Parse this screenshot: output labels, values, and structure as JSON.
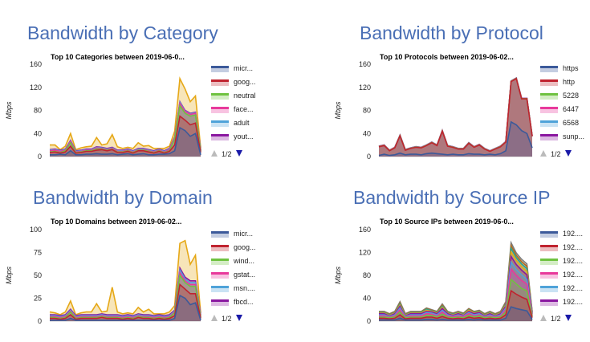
{
  "palette": [
    "#3c5a9a",
    "#c0232f",
    "#6fc240",
    "#e8399b",
    "#4fa3d9",
    "#8a17a0",
    "#e6a817",
    "#2aa58e",
    "#b46a1e",
    "#7d7d7d"
  ],
  "axis_color": "#cccccc",
  "pager_up_color": "#bbbbbb",
  "pager_down_color": "#1a1aa8",
  "chart_data": [
    {
      "type": "area",
      "heading": "Bandwidth by Category",
      "title": "Top 10 Categories between 2019-06-0...",
      "ylabel": "Mbps",
      "ylim": [
        0,
        160
      ],
      "yticks": [
        0,
        40,
        80,
        120,
        160
      ],
      "legend_position": "right",
      "pager": "1/2",
      "series": [
        {
          "name": "micr...",
          "values": [
            3,
            3,
            4,
            3,
            10,
            3,
            3,
            4,
            4,
            5,
            4,
            4,
            5,
            3,
            4,
            5,
            3,
            4,
            5,
            3,
            3,
            4,
            4,
            5,
            10,
            50,
            45,
            35,
            40,
            3
          ]
        },
        {
          "name": "goog...",
          "values": [
            4,
            5,
            2,
            5,
            8,
            3,
            4,
            5,
            5,
            6,
            8,
            6,
            7,
            4,
            3,
            4,
            3,
            6,
            5,
            5,
            3,
            5,
            2,
            4,
            10,
            20,
            18,
            20,
            18,
            4
          ]
        },
        {
          "name": "neutral",
          "values": [
            1,
            1,
            1,
            2,
            6,
            1,
            1,
            1,
            1,
            2,
            1,
            1,
            1,
            1,
            1,
            1,
            1,
            1,
            1,
            1,
            1,
            1,
            1,
            1,
            10,
            18,
            12,
            15,
            14,
            2
          ]
        },
        {
          "name": "face...",
          "values": [
            2,
            2,
            2,
            1,
            2,
            1,
            1,
            1,
            1,
            2,
            1,
            1,
            1,
            1,
            1,
            1,
            1,
            1,
            1,
            1,
            1,
            1,
            1,
            2,
            2,
            4,
            3,
            3,
            3,
            1
          ]
        },
        {
          "name": "adult",
          "values": [
            1,
            1,
            1,
            1,
            1,
            1,
            1,
            1,
            1,
            1,
            1,
            1,
            1,
            1,
            1,
            1,
            1,
            1,
            1,
            1,
            1,
            1,
            1,
            1,
            1,
            2,
            1,
            1,
            1,
            1
          ]
        },
        {
          "name": "yout...",
          "values": [
            1,
            1,
            1,
            1,
            1,
            1,
            1,
            1,
            1,
            1,
            1,
            1,
            1,
            1,
            1,
            1,
            1,
            1,
            1,
            1,
            1,
            1,
            1,
            1,
            1,
            1,
            1,
            1,
            1,
            1
          ]
        },
        {
          "name": "",
          "values": [
            8,
            7,
            1,
            5,
            12,
            2,
            4,
            4,
            5,
            16,
            4,
            8,
            22,
            6,
            3,
            3,
            4,
            10,
            4,
            7,
            4,
            1,
            4,
            4,
            10,
            40,
            37,
            20,
            28,
            3
          ]
        }
      ]
    },
    {
      "type": "area",
      "heading": "Bandwidth by Protocol",
      "title": "Top 10 Protocols between 2019-06-02...",
      "ylabel": "Mbps",
      "ylim": [
        0,
        160
      ],
      "yticks": [
        0,
        40,
        80,
        120,
        160
      ],
      "legend_position": "right",
      "pager": "1/2",
      "series": [
        {
          "name": "https",
          "values": [
            2,
            4,
            2,
            3,
            6,
            3,
            4,
            4,
            3,
            5,
            6,
            5,
            4,
            3,
            4,
            3,
            3,
            5,
            4,
            4,
            3,
            4,
            3,
            5,
            10,
            60,
            55,
            45,
            40,
            15
          ]
        },
        {
          "name": "http",
          "values": [
            15,
            15,
            8,
            12,
            30,
            8,
            10,
            12,
            12,
            14,
            18,
            14,
            40,
            15,
            12,
            10,
            10,
            18,
            12,
            16,
            10,
            5,
            10,
            12,
            15,
            70,
            80,
            55,
            60,
            20
          ]
        },
        {
          "name": "5228",
          "values": [
            0.5,
            0.5,
            0.5,
            0.5,
            0.5,
            0.5,
            0.5,
            0.5,
            0.5,
            0.5,
            0.5,
            0.5,
            0.5,
            0.5,
            0.5,
            0.5,
            0.5,
            0.5,
            0.5,
            0.5,
            0.5,
            0.5,
            0.5,
            0.5,
            0.5,
            0.5,
            0.5,
            0.5,
            0.5,
            0.5
          ]
        },
        {
          "name": "6447",
          "values": [
            0.3,
            0.3,
            0.3,
            0.3,
            0.3,
            0.3,
            0.3,
            0.3,
            0.3,
            0.3,
            0.3,
            0.3,
            0.3,
            0.3,
            0.3,
            0.3,
            0.3,
            0.3,
            0.3,
            0.3,
            0.3,
            0.3,
            0.3,
            0.3,
            0.3,
            0.3,
            0.3,
            0.3,
            0.3,
            0.3
          ]
        },
        {
          "name": "6568",
          "values": [
            0.2,
            0.2,
            0.2,
            0.2,
            0.2,
            0.2,
            0.2,
            0.2,
            0.2,
            0.2,
            0.2,
            0.2,
            0.2,
            0.2,
            0.2,
            0.2,
            0.2,
            0.2,
            0.2,
            0.2,
            0.2,
            0.2,
            0.2,
            0.2,
            0.2,
            0.2,
            0.2,
            0.2,
            0.2,
            0.2
          ]
        },
        {
          "name": "sunp...",
          "values": [
            0.2,
            0.2,
            0.2,
            0.2,
            0.2,
            0.2,
            0.2,
            0.2,
            0.2,
            0.2,
            0.2,
            0.2,
            0.2,
            0.2,
            0.2,
            0.2,
            0.2,
            0.2,
            0.2,
            0.2,
            0.2,
            0.2,
            0.2,
            0.2,
            0.2,
            0.2,
            0.2,
            0.2,
            0.2,
            0.2
          ]
        }
      ]
    },
    {
      "type": "area",
      "heading": "Bandwidth by Domain",
      "title": "Top 10 Domains between 2019-06-02...",
      "ylabel": "Mbps",
      "ylim": [
        0,
        100
      ],
      "yticks": [
        0,
        25,
        50,
        75,
        100
      ],
      "legend_position": "right",
      "pager": "1/2",
      "series": [
        {
          "name": "micr...",
          "values": [
            1,
            1,
            1,
            1,
            3,
            1,
            1,
            1,
            1,
            1,
            1,
            1,
            1,
            1,
            1,
            1,
            1,
            1,
            1,
            1,
            1,
            1,
            1,
            1,
            3,
            28,
            25,
            18,
            20,
            1
          ]
        },
        {
          "name": "goog...",
          "values": [
            2,
            2,
            1,
            2,
            4,
            1,
            2,
            2,
            2,
            2,
            3,
            2,
            2,
            2,
            1,
            2,
            1,
            3,
            2,
            2,
            1,
            2,
            1,
            2,
            3,
            12,
            10,
            12,
            10,
            2
          ]
        },
        {
          "name": "wind...",
          "values": [
            1,
            1,
            1,
            1,
            3,
            1,
            1,
            1,
            1,
            1,
            1,
            1,
            1,
            1,
            1,
            1,
            1,
            1,
            1,
            1,
            1,
            1,
            1,
            1,
            3,
            10,
            7,
            8,
            8,
            1
          ]
        },
        {
          "name": "gstat...",
          "values": [
            1,
            1,
            1,
            1,
            1,
            1,
            1,
            1,
            1,
            1,
            1,
            1,
            1,
            1,
            1,
            1,
            1,
            1,
            1,
            1,
            1,
            1,
            1,
            1,
            1,
            3,
            2,
            2,
            2,
            1
          ]
        },
        {
          "name": "msn....",
          "values": [
            1,
            1,
            1,
            1,
            1,
            1,
            1,
            1,
            1,
            1,
            1,
            1,
            1,
            1,
            1,
            1,
            1,
            1,
            1,
            1,
            1,
            1,
            1,
            1,
            1,
            3,
            2,
            2,
            2,
            1
          ]
        },
        {
          "name": "fbcd...",
          "values": [
            1,
            1,
            1,
            1,
            1,
            1,
            1,
            1,
            1,
            1,
            1,
            1,
            1,
            1,
            1,
            1,
            1,
            1,
            1,
            1,
            1,
            1,
            1,
            1,
            1,
            2,
            2,
            2,
            2,
            1
          ]
        },
        {
          "name": "",
          "values": [
            3,
            2,
            1,
            3,
            9,
            1,
            2,
            3,
            3,
            12,
            2,
            4,
            30,
            3,
            2,
            2,
            2,
            7,
            3,
            6,
            2,
            1,
            2,
            3,
            5,
            27,
            40,
            18,
            28,
            2
          ]
        }
      ]
    },
    {
      "type": "area",
      "heading": "Bandwidth by Source IP",
      "title": "Top 10 Source IPs between 2019-06-0...",
      "ylabel": "Mbps",
      "ylim": [
        0,
        160
      ],
      "yticks": [
        0,
        40,
        80,
        120,
        160
      ],
      "legend_position": "right",
      "pager": "1/2",
      "series": [
        {
          "name": "192....",
          "values": [
            2,
            2,
            2,
            2,
            5,
            2,
            2,
            2,
            2,
            3,
            3,
            2,
            3,
            2,
            2,
            2,
            2,
            3,
            2,
            3,
            2,
            2,
            2,
            2,
            5,
            25,
            22,
            20,
            18,
            3
          ]
        },
        {
          "name": "192....",
          "values": [
            3,
            3,
            2,
            3,
            6,
            2,
            3,
            3,
            3,
            4,
            4,
            3,
            5,
            3,
            2,
            3,
            2,
            4,
            3,
            3,
            2,
            3,
            2,
            3,
            6,
            28,
            25,
            22,
            20,
            3
          ]
        },
        {
          "name": "192....",
          "values": [
            2,
            2,
            2,
            2,
            5,
            2,
            2,
            2,
            2,
            3,
            3,
            2,
            4,
            2,
            2,
            2,
            2,
            3,
            2,
            3,
            2,
            2,
            2,
            2,
            5,
            20,
            18,
            15,
            15,
            2
          ]
        },
        {
          "name": "192....",
          "values": [
            2,
            2,
            1,
            2,
            4,
            1,
            2,
            2,
            2,
            3,
            2,
            2,
            4,
            2,
            2,
            2,
            2,
            3,
            2,
            2,
            1,
            2,
            1,
            2,
            4,
            18,
            15,
            14,
            12,
            2
          ]
        },
        {
          "name": "192....",
          "values": [
            2,
            2,
            1,
            2,
            3,
            1,
            2,
            2,
            2,
            2,
            2,
            2,
            3,
            2,
            1,
            2,
            1,
            2,
            2,
            2,
            1,
            2,
            1,
            2,
            3,
            12,
            10,
            10,
            8,
            2
          ]
        },
        {
          "name": "192....",
          "values": [
            2,
            2,
            1,
            2,
            3,
            1,
            2,
            2,
            2,
            2,
            2,
            2,
            3,
            2,
            1,
            2,
            1,
            2,
            2,
            2,
            1,
            2,
            1,
            2,
            3,
            10,
            9,
            8,
            8,
            1
          ]
        },
        {
          "name": "",
          "values": [
            1,
            1,
            1,
            1,
            2,
            1,
            1,
            1,
            1,
            2,
            1,
            1,
            2,
            1,
            1,
            1,
            1,
            2,
            1,
            1,
            1,
            1,
            1,
            1,
            2,
            8,
            7,
            6,
            6,
            1
          ]
        },
        {
          "name": "",
          "values": [
            1,
            1,
            1,
            1,
            2,
            1,
            1,
            1,
            1,
            2,
            1,
            1,
            2,
            1,
            1,
            1,
            1,
            1,
            1,
            1,
            1,
            1,
            1,
            1,
            2,
            6,
            5,
            5,
            5,
            1
          ]
        },
        {
          "name": "",
          "values": [
            1,
            1,
            1,
            1,
            2,
            1,
            1,
            1,
            1,
            1,
            1,
            1,
            2,
            1,
            1,
            1,
            1,
            1,
            1,
            1,
            1,
            1,
            1,
            1,
            2,
            5,
            4,
            4,
            4,
            1
          ]
        },
        {
          "name": "",
          "values": [
            1,
            1,
            1,
            1,
            2,
            1,
            1,
            1,
            1,
            1,
            1,
            1,
            2,
            1,
            1,
            1,
            1,
            1,
            1,
            1,
            1,
            1,
            1,
            1,
            2,
            5,
            4,
            4,
            4,
            1
          ]
        }
      ]
    }
  ]
}
